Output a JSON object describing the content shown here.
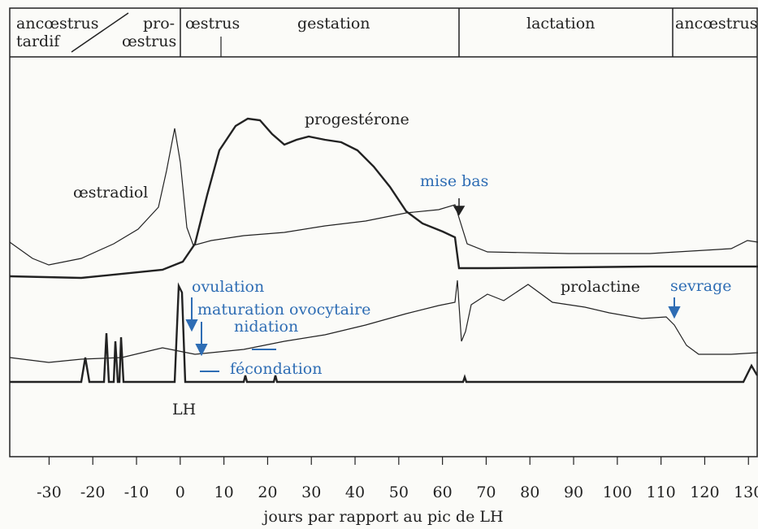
{
  "header": {
    "cells": [
      {
        "lines": [
          "ancœstrus",
          "tardif"
        ]
      },
      {
        "lines": [
          "pro-",
          "œstrus"
        ]
      },
      {
        "lines": [
          "œstrus"
        ]
      },
      {
        "lines": [
          "gestation"
        ]
      },
      {
        "lines": [
          "lactation"
        ]
      },
      {
        "lines": [
          "ancœstrus"
        ]
      }
    ]
  },
  "curves": {
    "oestradiol": "œstradiol",
    "progesterone": "progestérone",
    "prolactin": "prolactine",
    "lh": "LH"
  },
  "annotations": {
    "birth": "mise bas",
    "ovulation": "ovulation",
    "maturation": "maturation ovocytaire",
    "nidation": "nidation",
    "fecondation": "fécondation",
    "weaning": "sevrage"
  },
  "axis": {
    "label": "jours par rapport au pic de LH",
    "xlim": [
      -39,
      132
    ],
    "ticks": [
      -30,
      -20,
      -10,
      0,
      10,
      20,
      30,
      40,
      50,
      60,
      70,
      80,
      90,
      100,
      110,
      120,
      130
    ]
  }
}
